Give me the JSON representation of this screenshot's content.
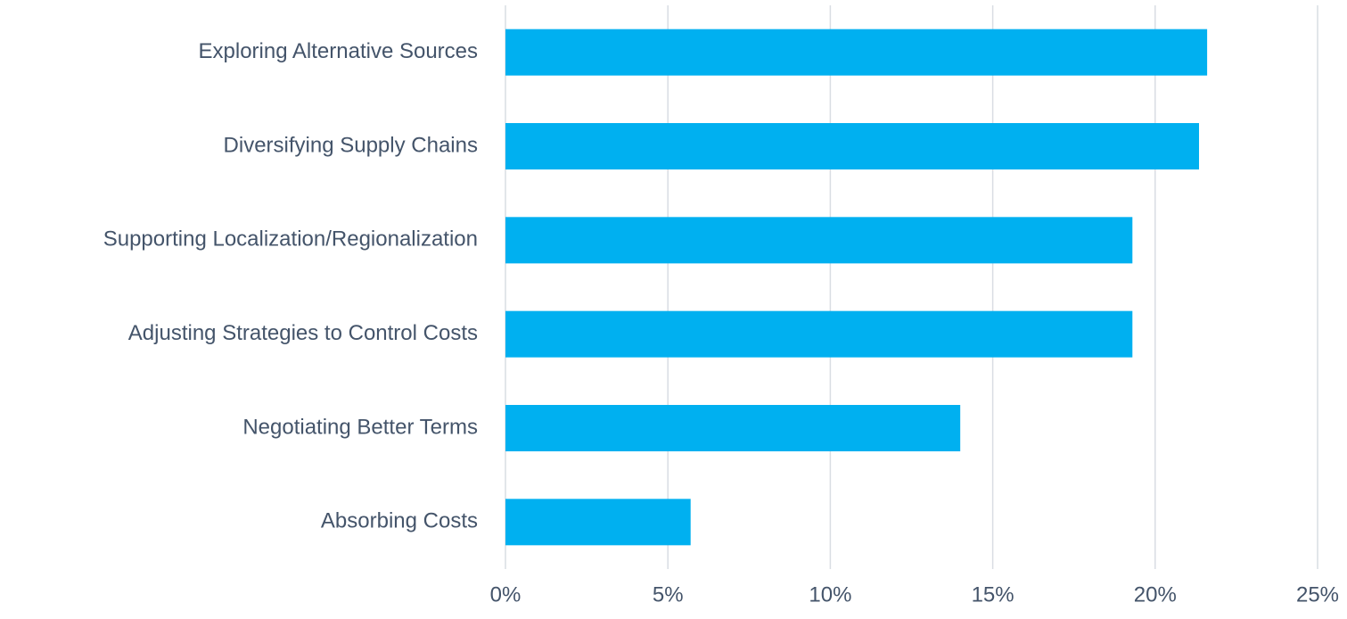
{
  "chart_data": {
    "type": "barh",
    "categories": [
      "Exploring Alternative Sources",
      "Diversifying Supply Chains",
      "Supporting Localization/Regionalization",
      "Adjusting Strategies to Control Costs",
      "Negotiating Better Terms",
      "Absorbing Costs"
    ],
    "values": [
      21.6,
      21.35,
      19.3,
      19.3,
      14.0,
      5.7
    ],
    "color": "#00b0f0",
    "xlim": [
      0,
      25
    ],
    "xticks": [
      {
        "value": 0,
        "label": "0%"
      },
      {
        "value": 5,
        "label": "5%"
      },
      {
        "value": 10,
        "label": "10%"
      },
      {
        "value": 15,
        "label": "15%"
      },
      {
        "value": 20,
        "label": "20%"
      },
      {
        "value": 25,
        "label": "25%"
      }
    ],
    "grid": true
  }
}
